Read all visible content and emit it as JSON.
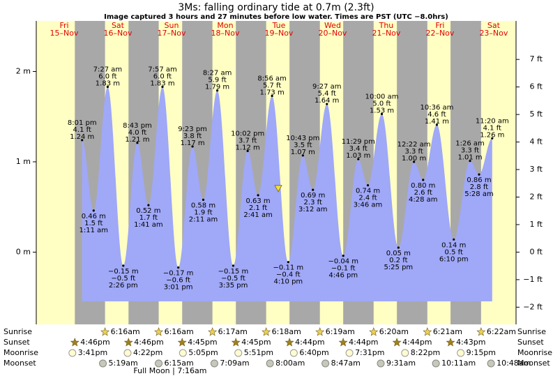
{
  "chart_data": {
    "type": "tide",
    "title": "3Ms: falling  ordinary tide at 0.7m (2.3ft)",
    "subtitle": "Image captured 3 hours and 27 minutes before low water. Times are PST (UTC −8.0hrs)",
    "current_level_m": 0.7,
    "ylim": [
      -0.8,
      2.56
    ],
    "yticks": [
      {
        "value": 0,
        "label": "0 m"
      },
      {
        "value": 1,
        "label": "1 m"
      },
      {
        "value": 2,
        "label": "2 m"
      }
    ],
    "y2lim": [
      -2.625,
      8.399
    ],
    "y2ticks": [
      {
        "value": -2,
        "label": "−2 ft"
      },
      {
        "value": -1,
        "label": "−1 ft"
      },
      {
        "value": 0,
        "label": "0 ft"
      },
      {
        "value": 1,
        "label": "1 ft"
      },
      {
        "value": 2,
        "label": "2 ft"
      },
      {
        "value": 3,
        "label": "3 ft"
      },
      {
        "value": 4,
        "label": "4 ft"
      },
      {
        "value": 5,
        "label": "5 ft"
      },
      {
        "value": 6,
        "label": "6 ft"
      },
      {
        "value": 7,
        "label": "7 ft"
      }
    ],
    "colors": {
      "water": "#a0a8f8",
      "day": "#ffffc4",
      "night": "#a8a8a8",
      "day_label": "#e00000"
    },
    "rows": {
      "sunrise": "Sunrise",
      "sunset": "Sunset",
      "moonrise": "Moonrise",
      "moonset": "Moonset"
    },
    "days": [
      {
        "weekday": "Fri",
        "date": "15–Nov",
        "sunset": "4:46pm",
        "moonrise": "3:41pm",
        "tides": [
          {
            "time": "8:01 pm",
            "m": 1.24,
            "m_label": "1.24 m",
            "ft_label": "4.1 ft"
          }
        ]
      },
      {
        "weekday": "Sat",
        "date": "16–Nov",
        "sunrise": "6:16am",
        "sunset": "4:46pm",
        "moonrise": "4:22pm",
        "moonset": "5:19am",
        "tides": [
          {
            "time": "1:11 am",
            "m": 0.46,
            "m_label": "0.46 m",
            "ft_label": "1.5 ft"
          },
          {
            "time": "7:27 am",
            "m": 1.83,
            "m_label": "1.83 m",
            "ft_label": "6.0 ft"
          },
          {
            "time": "2:26 pm",
            "m": -0.15,
            "m_label": "−0.15 m",
            "ft_label": "−0.5 ft"
          },
          {
            "time": "8:43 pm",
            "m": 1.21,
            "m_label": "1.21 m",
            "ft_label": "4.0 ft"
          }
        ]
      },
      {
        "weekday": "Sun",
        "date": "17–Nov",
        "sunrise": "6:16am",
        "sunset": "4:45pm",
        "moonrise": "5:05pm",
        "moonset": "6:15am",
        "moon_phase": "Full Moon | 7:16am",
        "tides": [
          {
            "time": "1:41 am",
            "m": 0.52,
            "m_label": "0.52 m",
            "ft_label": "1.7 ft"
          },
          {
            "time": "7:57 am",
            "m": 1.83,
            "m_label": "1.83 m",
            "ft_label": "6.0 ft"
          },
          {
            "time": "3:01 pm",
            "m": -0.17,
            "m_label": "−0.17 m",
            "ft_label": "−0.6 ft"
          },
          {
            "time": "9:23 pm",
            "m": 1.17,
            "m_label": "1.17 m",
            "ft_label": "3.8 ft"
          }
        ]
      },
      {
        "weekday": "Mon",
        "date": "18–Nov",
        "sunrise": "6:17am",
        "sunset": "4:45pm",
        "moonrise": "5:51pm",
        "moonset": "7:09am",
        "tides": [
          {
            "time": "2:11 am",
            "m": 0.58,
            "m_label": "0.58 m",
            "ft_label": "1.9 ft"
          },
          {
            "time": "8:27 am",
            "m": 1.79,
            "m_label": "1.79 m",
            "ft_label": "5.9 ft"
          },
          {
            "time": "3:35 pm",
            "m": -0.15,
            "m_label": "−0.15 m",
            "ft_label": "−0.5 ft"
          },
          {
            "time": "10:02 pm",
            "m": 1.12,
            "m_label": "1.12 m",
            "ft_label": "3.7 ft"
          }
        ]
      },
      {
        "weekday": "Tue",
        "date": "19–Nov",
        "sunrise": "6:18am",
        "sunset": "4:44pm",
        "moonrise": "6:40pm",
        "moonset": "8:00am",
        "tides": [
          {
            "time": "2:41 am",
            "m": 0.63,
            "m_label": "0.63 m",
            "ft_label": "2.1 ft"
          },
          {
            "time": "8:56 am",
            "m": 1.73,
            "m_label": "1.73 m",
            "ft_label": "5.7 ft"
          },
          {
            "time": "4:10 pm",
            "m": -0.11,
            "m_label": "−0.11 m",
            "ft_label": "−0.4 ft"
          },
          {
            "time": "10:43 pm",
            "m": 1.07,
            "m_label": "1.07 m",
            "ft_label": "3.5 ft"
          }
        ]
      },
      {
        "weekday": "Wed",
        "date": "20–Nov",
        "sunrise": "6:19am",
        "sunset": "4:44pm",
        "moonrise": "7:31pm",
        "moonset": "8:47am",
        "tides": [
          {
            "time": "3:12 am",
            "m": 0.69,
            "m_label": "0.69 m",
            "ft_label": "2.3 ft"
          },
          {
            "time": "9:27 am",
            "m": 1.64,
            "m_label": "1.64 m",
            "ft_label": "5.4 ft"
          },
          {
            "time": "4:46 pm",
            "m": -0.04,
            "m_label": "−0.04 m",
            "ft_label": "−0.1 ft"
          },
          {
            "time": "11:29 pm",
            "m": 1.03,
            "m_label": "1.03 m",
            "ft_label": "3.4 ft"
          }
        ]
      },
      {
        "weekday": "Thu",
        "date": "21–Nov",
        "sunrise": "6:20am",
        "sunset": "4:44pm",
        "moonrise": "8:22pm",
        "moonset": "9:31am",
        "tides": [
          {
            "time": "3:46 am",
            "m": 0.74,
            "m_label": "0.74 m",
            "ft_label": "2.4 ft"
          },
          {
            "time": "10:00 am",
            "m": 1.53,
            "m_label": "1.53 m",
            "ft_label": "5.0 ft"
          },
          {
            "time": "5:25 pm",
            "m": 0.05,
            "m_label": "0.05 m",
            "ft_label": "0.2 ft"
          }
        ]
      },
      {
        "weekday": "Fri",
        "date": "22–Nov",
        "sunrise": "6:21am",
        "sunset": "4:43pm",
        "moonrise": "9:15pm",
        "moonset": "10:11am",
        "tides": [
          {
            "time": "12:22 am",
            "m": 1.0,
            "m_label": "1.00 m",
            "ft_label": "3.3 ft"
          },
          {
            "time": "4:28 am",
            "m": 0.8,
            "m_label": "0.80 m",
            "ft_label": "2.6 ft"
          },
          {
            "time": "10:36 am",
            "m": 1.41,
            "m_label": "1.41 m",
            "ft_label": "4.6 ft"
          },
          {
            "time": "6:10 pm",
            "m": 0.14,
            "m_label": "0.14 m",
            "ft_label": "0.5 ft"
          }
        ]
      },
      {
        "weekday": "Sat",
        "date": "23–Nov",
        "sunrise": "6:22am",
        "moonset": "10:48am",
        "tides": [
          {
            "time": "1:26 am",
            "m": 1.01,
            "m_label": "1.01 m",
            "ft_label": "3.3 ft"
          },
          {
            "time": "5:28 am",
            "m": 0.86,
            "m_label": "0.86 m",
            "ft_label": "2.8 ft"
          },
          {
            "time": "11:20 am",
            "m": 1.26,
            "m_label": "1.26 m",
            "ft_label": "4.1 ft"
          }
        ]
      }
    ]
  }
}
